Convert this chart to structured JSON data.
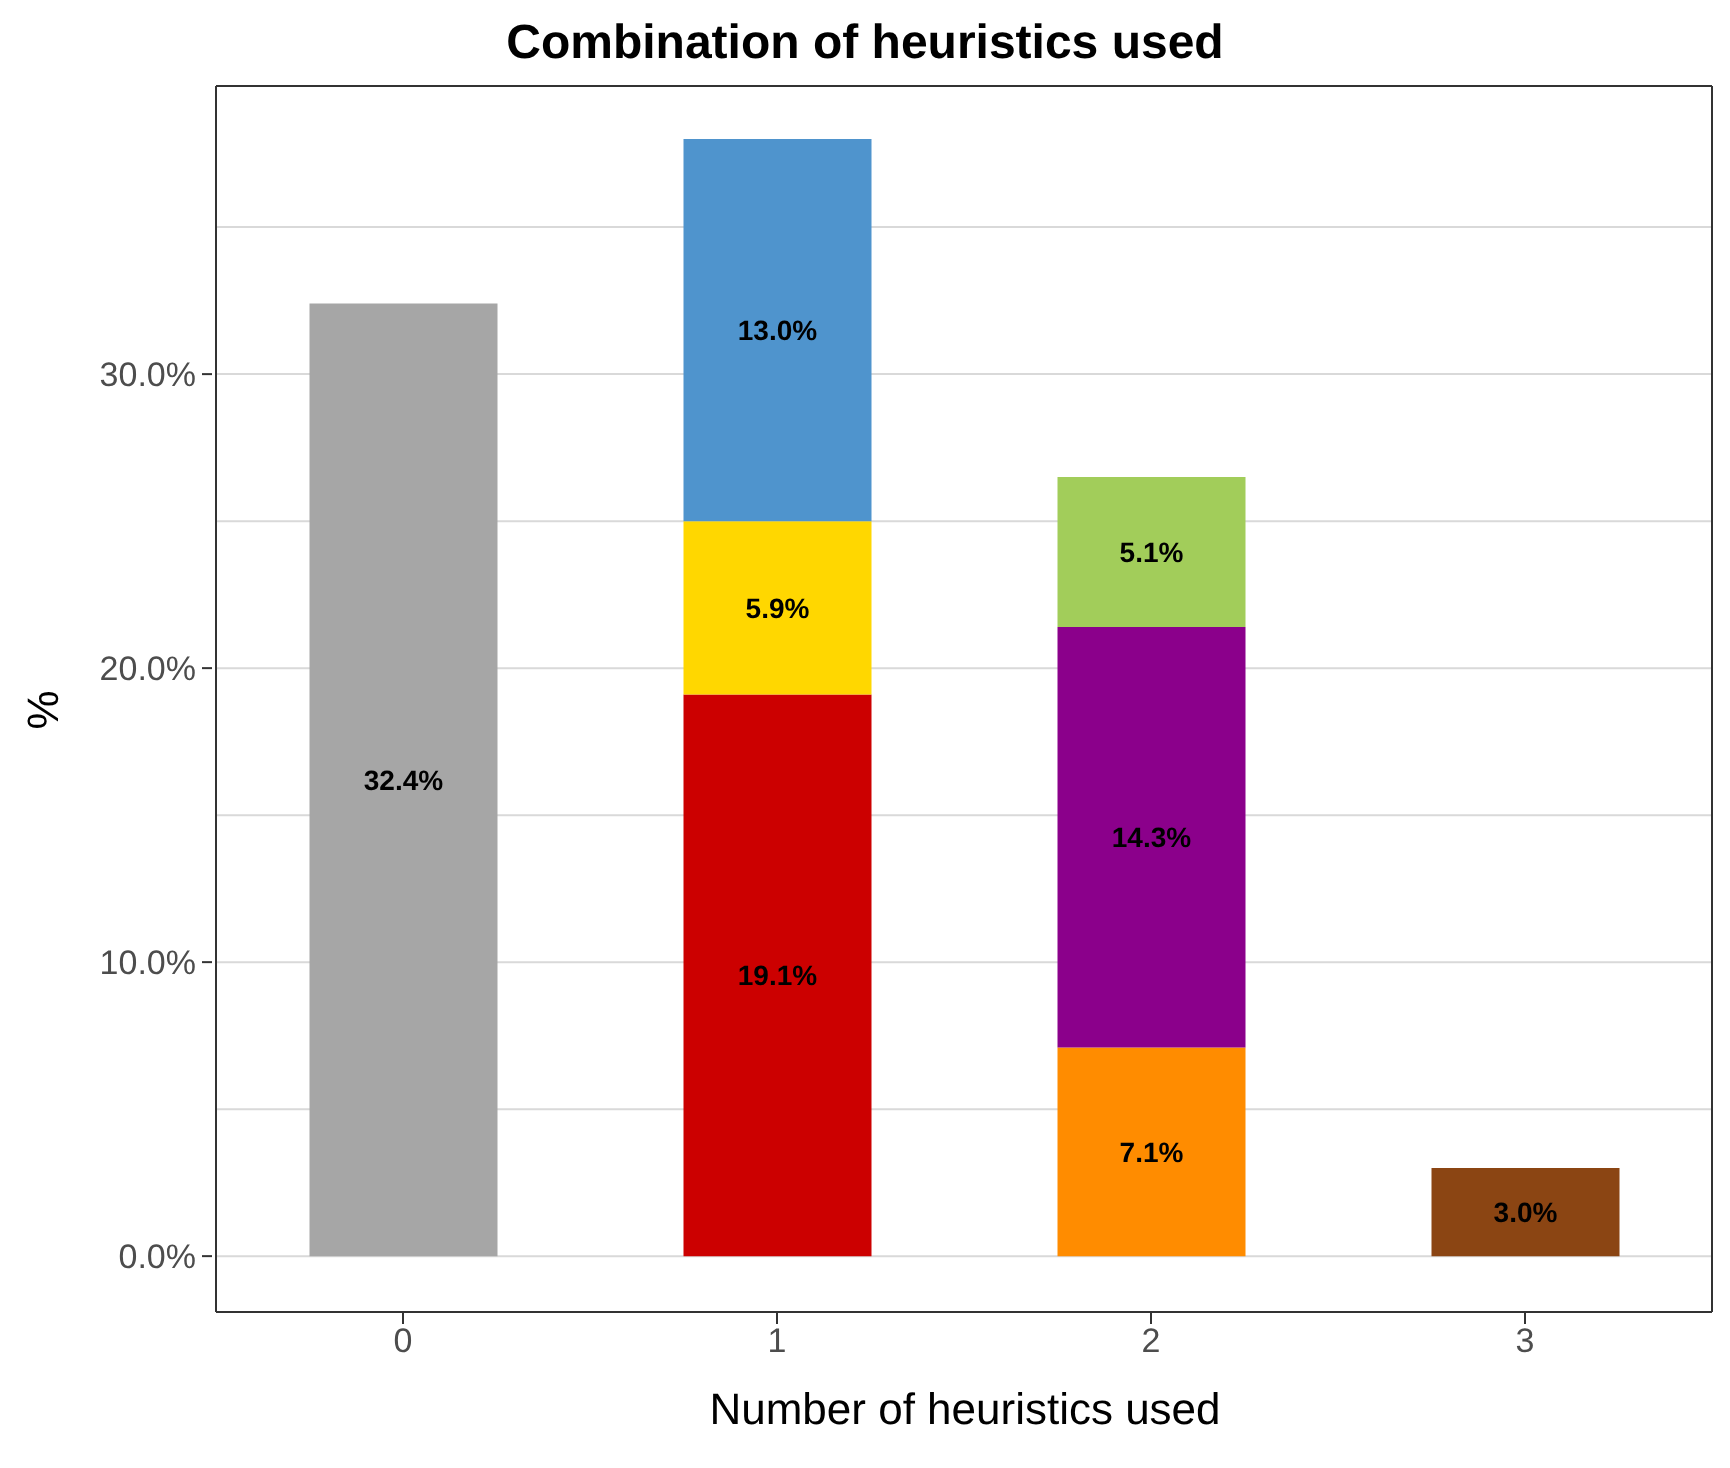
{
  "chart_data": {
    "type": "bar",
    "title": "Combination of heuristics used",
    "xlabel": "Number of heuristics used",
    "ylabel": "%",
    "categories": [
      "0",
      "1",
      "2",
      "3"
    ],
    "stacked": true,
    "series": [
      {
        "values": [
          32.4,
          19.1,
          7.1,
          3.0
        ],
        "colors": [
          "#a6a6a6",
          "#cc0000",
          "#ff8c00",
          "#8b4513"
        ],
        "value_labels": [
          "32.4%",
          "19.1%",
          "7.1%",
          "3.0%"
        ]
      },
      {
        "values": [
          null,
          5.9,
          14.3,
          null
        ],
        "colors": [
          "#a6a6a6",
          "#ffd700",
          "#8b008b",
          "#8b4513"
        ],
        "value_labels": [
          null,
          "5.9%",
          "14.3%",
          null
        ]
      },
      {
        "values": [
          null,
          13.0,
          5.1,
          null
        ],
        "colors": [
          "#a6a6a6",
          "#4f94cd",
          "#a2cd5a",
          "#8b4513"
        ],
        "value_labels": [
          null,
          "13.0%",
          "5.1%",
          null
        ]
      }
    ],
    "ylim": [
      -1.9,
      39.8
    ],
    "yticks": [
      {
        "value": 0,
        "label": "0.0%"
      },
      {
        "value": 5,
        "label": null
      },
      {
        "value": 10,
        "label": "10.0%"
      },
      {
        "value": 15,
        "label": null
      },
      {
        "value": 20,
        "label": "20.0%"
      },
      {
        "value": 25,
        "label": null
      },
      {
        "value": 30,
        "label": "30.0%"
      },
      {
        "value": 35,
        "label": null
      }
    ],
    "grid": "y"
  }
}
